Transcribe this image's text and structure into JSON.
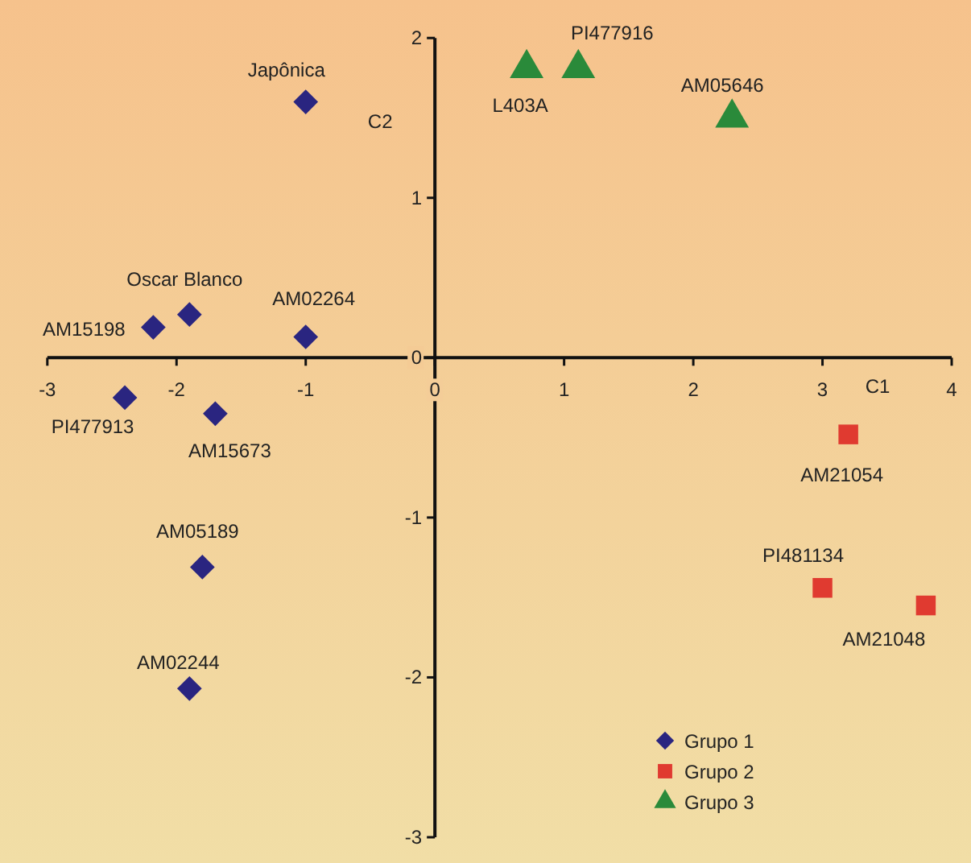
{
  "chart_data": {
    "type": "scatter",
    "xlabel": "C1",
    "ylabel": "C2",
    "xlim": [
      -3,
      4
    ],
    "ylim": [
      -3,
      2
    ],
    "xticks": [
      -3,
      -2,
      -1,
      0,
      1,
      2,
      3,
      4
    ],
    "yticks": [
      -3,
      -2,
      -1,
      0,
      1,
      2
    ],
    "grid": false,
    "legend": "bottom right",
    "series": [
      {
        "name": "Grupo 1",
        "color": "#2a2580",
        "marker": "diamond",
        "x": [
          -1.0,
          -1.9,
          -2.18,
          -1.0,
          -2.4,
          -1.7,
          -1.8,
          -1.9
        ],
        "values": [
          1.6,
          0.27,
          0.19,
          0.13,
          -0.25,
          -0.35,
          -1.31,
          -2.07
        ]
      },
      {
        "name": "Grupo 2",
        "color": "#e03a30",
        "marker": "square",
        "x": [
          3.2,
          3.0,
          3.8
        ],
        "values": [
          -0.48,
          -1.44,
          -1.55
        ]
      },
      {
        "name": "Grupo 3",
        "color": "#2a8a3a",
        "marker": "triangle",
        "x": [
          0.71,
          1.11,
          2.3
        ],
        "values": [
          1.81,
          1.81,
          1.5
        ]
      }
    ],
    "annotations": [
      {
        "text": "Japônica",
        "x": -1.0,
        "y": 1.6
      },
      {
        "text": "Oscar Blanco",
        "x": -1.9,
        "y": 0.27
      },
      {
        "text": "AM15198",
        "x": -2.18,
        "y": 0.19
      },
      {
        "text": "AM02264",
        "x": -1.0,
        "y": 0.13
      },
      {
        "text": "PI477913",
        "x": -2.4,
        "y": -0.25
      },
      {
        "text": "AM15673",
        "x": -1.7,
        "y": -0.35
      },
      {
        "text": "AM05189",
        "x": -1.8,
        "y": -1.31
      },
      {
        "text": "AM02244",
        "x": -1.9,
        "y": -2.07
      },
      {
        "text": "AM21054",
        "x": 3.2,
        "y": -0.48
      },
      {
        "text": "PI481134",
        "x": 3.0,
        "y": -1.44
      },
      {
        "text": "AM21048",
        "x": 3.8,
        "y": -1.55
      },
      {
        "text": "L403A",
        "x": 0.71,
        "y": 1.81
      },
      {
        "text": "PI477916",
        "x": 1.11,
        "y": 1.81
      },
      {
        "text": "AM05646",
        "x": 2.3,
        "y": 1.5
      }
    ]
  }
}
